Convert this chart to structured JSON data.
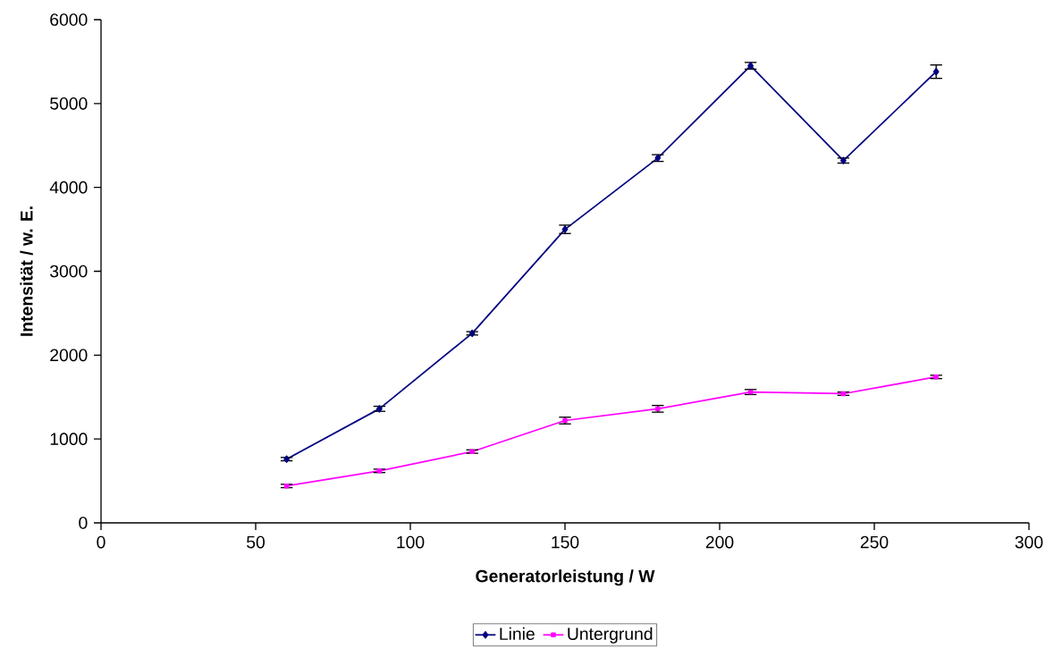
{
  "chart_data": {
    "type": "line",
    "xlabel": "Generatorleistung / W",
    "ylabel": "Intensität / w. E.",
    "x": [
      60,
      90,
      120,
      150,
      180,
      210,
      240,
      270
    ],
    "series": [
      {
        "name": "Linie",
        "color": "#000080",
        "marker": "diamond",
        "values": [
          760,
          1360,
          2260,
          3500,
          4350,
          5450,
          4320,
          5380
        ],
        "errors": [
          20,
          30,
          20,
          50,
          40,
          40,
          30,
          80
        ]
      },
      {
        "name": "Untergrund",
        "color": "#ff00ff",
        "marker": "square",
        "values": [
          440,
          620,
          850,
          1220,
          1360,
          1560,
          1540,
          1740
        ],
        "errors": [
          20,
          20,
          20,
          40,
          40,
          30,
          20,
          20
        ]
      }
    ],
    "xlim": [
      0,
      300
    ],
    "xticks": [
      0,
      50,
      100,
      150,
      200,
      250,
      300
    ],
    "ylim": [
      0,
      6000
    ],
    "yticks": [
      0,
      1000,
      2000,
      3000,
      4000,
      5000,
      6000
    ],
    "grid": false,
    "legend": "bottom",
    "line_style": "solid"
  }
}
